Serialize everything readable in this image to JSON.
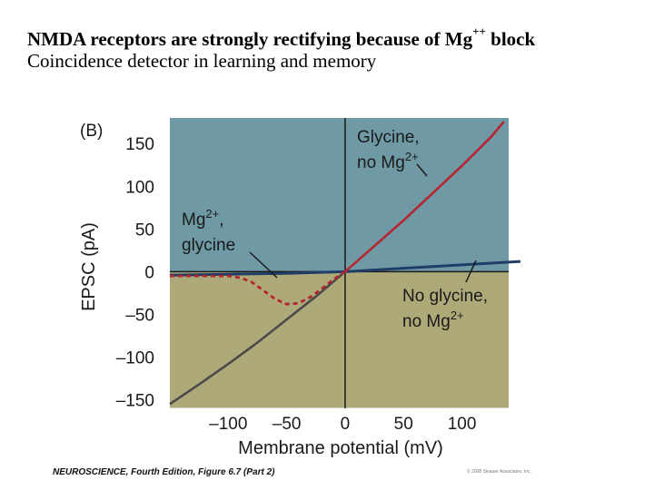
{
  "slide": {
    "title_main": "NMDA receptors are strongly rectifying because of Mg",
    "title_sup": "++",
    "title_end": " block",
    "subtitle": "Coincidence detector in learning and memory"
  },
  "colors": {
    "top_bg": "#6f9aa5",
    "bottom_bg": "#ada978",
    "gray_curve": "#4a4a4a",
    "red_curve": "#b5252f",
    "blue_curve": "#1f3d66",
    "axis": "#1a1a1a"
  },
  "chart_data": {
    "type": "line",
    "panel_label": "(B)",
    "xlabel": "Membrane potential (mV)",
    "ylabel": "EPSC (pA)",
    "xlim": [
      -150,
      140
    ],
    "ylim": [
      -160,
      180
    ],
    "x_ticks": [
      -100,
      -50,
      0,
      50,
      100
    ],
    "x_tick_labels": [
      "–100",
      "–50",
      "0",
      "50",
      "100"
    ],
    "y_ticks": [
      150,
      100,
      50,
      0,
      -50,
      -100,
      -150
    ],
    "y_tick_labels": [
      "150",
      "100",
      "50",
      "0",
      "–50",
      "–100",
      "–150"
    ],
    "series": [
      {
        "name": "Glycine, no Mg2+",
        "style": "solid",
        "segments": [
          {
            "color_key": "gray_curve",
            "x": [
              -150,
              -125,
              -100,
              -75,
              -50,
              -25,
              0
            ],
            "y": [
              -155,
              -132,
              -108,
              -83,
              -56,
              -29,
              0
            ]
          },
          {
            "color_key": "red_curve",
            "x": [
              0,
              25,
              50,
              75,
              100,
              125,
              136
            ],
            "y": [
              0,
              30,
              60,
              92,
              124,
              158,
              176
            ]
          }
        ]
      },
      {
        "name": "Mg2+, glycine",
        "style": "dashed",
        "color_key": "red_curve",
        "x": [
          -150,
          -125,
          -100,
          -90,
          -80,
          -70,
          -60,
          -50,
          -40,
          -30,
          -20,
          -10,
          0
        ],
        "y": [
          -5,
          -5,
          -5,
          -7,
          -12,
          -22,
          -32,
          -38,
          -37,
          -30,
          -20,
          -9,
          0
        ]
      },
      {
        "name": "No glycine, no Mg2+",
        "style": "solid",
        "color_key": "blue_curve",
        "x": [
          -150,
          -100,
          -50,
          0,
          50,
          100,
          150
        ],
        "y": [
          -4,
          -3,
          -2,
          0,
          4,
          8,
          12
        ]
      }
    ],
    "annotations": [
      {
        "lines": [
          "Glycine,",
          "no Mg"
        ],
        "sup": "2+",
        "target": "Glycine, no Mg2+"
      },
      {
        "lines": [
          "Mg",
          "glycine"
        ],
        "sup": "2+",
        "suffix": ",",
        "target": "Mg2+, glycine"
      },
      {
        "lines": [
          "No glycine,",
          "no Mg"
        ],
        "sup": "2+",
        "target": "No glycine, no Mg2+"
      }
    ]
  },
  "footer": {
    "book": "NEUROSCIENCE, Fourth Edition, Figure 6.7 (Part 2)",
    "copyright": "© 2008 Sinauer Associates, Inc."
  }
}
